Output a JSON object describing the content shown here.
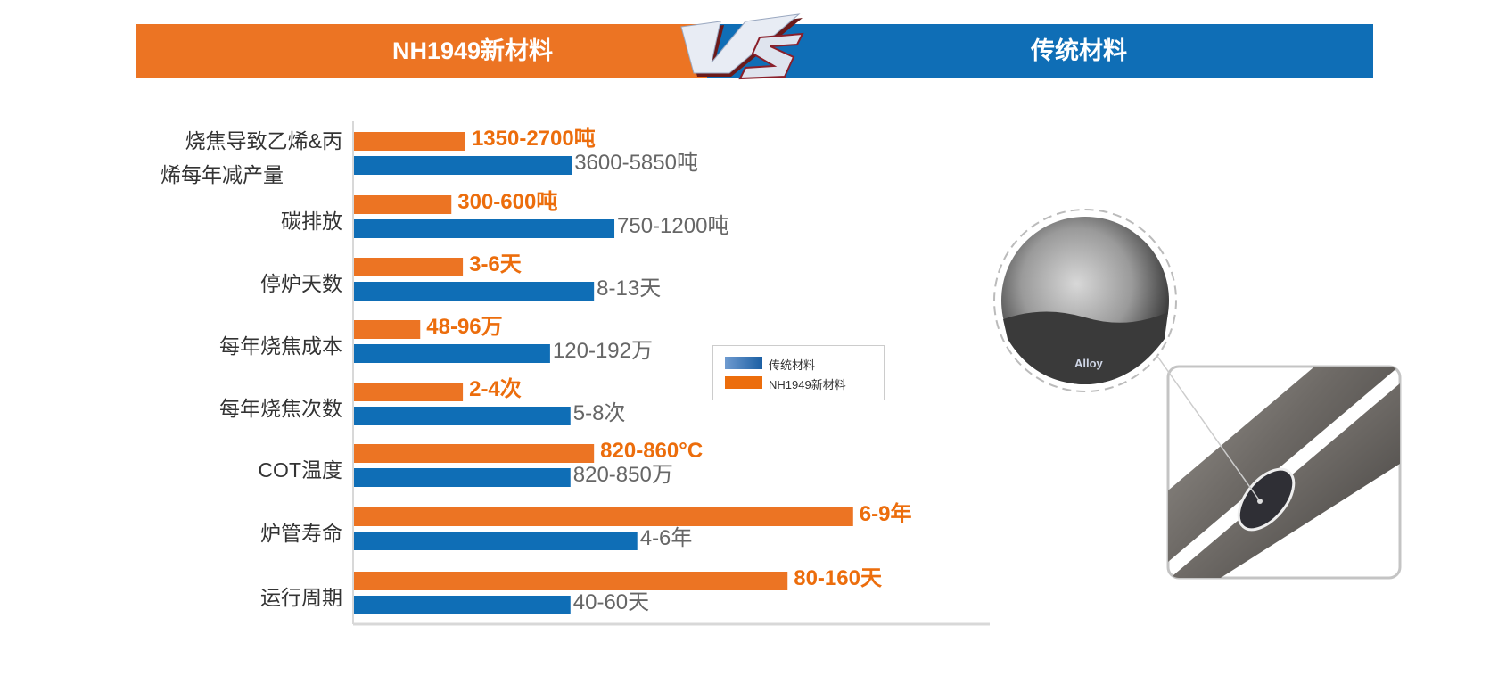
{
  "header": {
    "left_title": "NH1949新材料",
    "vs": "VS",
    "right_title": "传统材料"
  },
  "colors": {
    "nh1949": "#ec7423",
    "traditional": "#0f6eb6"
  },
  "legend": [
    {
      "label": "传统材料",
      "color": "#3a78b8"
    },
    {
      "label": "NH1949新材料",
      "color": "#ec6d0c"
    }
  ],
  "photo": {
    "caption": "Alloy"
  },
  "chart_data": {
    "type": "bar",
    "orientation": "horizontal",
    "categories": [
      "烧焦导致乙烯&丙烯每年减产量",
      "碳排放",
      "停炉天数",
      "每年烧焦成本",
      "每年烧焦次数",
      "COT温度",
      "炉管寿命",
      "运行周期"
    ],
    "category_lines": [
      [
        "烧焦导致乙烯&丙",
        "烯每年减产量"
      ],
      [
        "碳排放"
      ],
      [
        "停炉天数"
      ],
      [
        "每年烧焦成本"
      ],
      [
        "每年烧焦次数"
      ],
      [
        "COT温度"
      ],
      [
        "炉管寿命"
      ],
      [
        "运行周期"
      ]
    ],
    "series": [
      {
        "name": "NH1949新材料",
        "color": "#ec7423",
        "labels": [
          "1350-2700吨",
          "300-600吨",
          "3-6天",
          "48-96万",
          "2-4次",
          "820-860°C",
          "6-9年",
          "80-160天"
        ],
        "bar_fraction": [
          0.175,
          0.153,
          0.171,
          0.104,
          0.171,
          0.377,
          0.784,
          0.681
        ]
      },
      {
        "name": "传统材料",
        "color": "#0f6eb6",
        "labels": [
          "3600-5850吨",
          "750-1200吨",
          "8-13天",
          "120-192万",
          "5-8次",
          "820-850万",
          "4-6年",
          "40-60天"
        ],
        "bar_fraction": [
          0.342,
          0.409,
          0.377,
          0.308,
          0.34,
          0.34,
          0.445,
          0.34
        ]
      }
    ],
    "legend_position": "center-right",
    "grid": false
  }
}
